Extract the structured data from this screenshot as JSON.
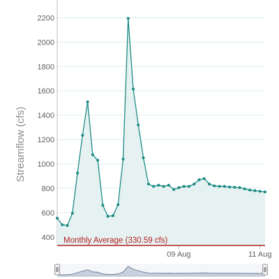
{
  "chart_data": {
    "type": "area",
    "title": "",
    "xlabel": "",
    "ylabel": "Streamflow (cfs)",
    "ylim": [
      330,
      2300
    ],
    "yticks": [
      400,
      600,
      800,
      1000,
      1200,
      1400,
      1600,
      1800,
      2000,
      2200
    ],
    "x_start": "2023-08-06",
    "x_step_hours": 3,
    "x_ticks": [
      {
        "label": "09 Aug",
        "index": 24
      },
      {
        "label": "11 Aug",
        "index": 40
      }
    ],
    "grid": true,
    "series": [
      {
        "name": "",
        "color": "#1b8a84",
        "fill": "#e6f2f1",
        "values": [
          555,
          500,
          495,
          595,
          925,
          1235,
          1510,
          1075,
          1030,
          660,
          570,
          575,
          665,
          1040,
          2195,
          1615,
          1320,
          1050,
          835,
          815,
          825,
          815,
          825,
          790,
          805,
          815,
          815,
          835,
          870,
          880,
          835,
          820,
          815,
          815,
          810,
          808,
          805,
          795,
          785,
          780,
          775,
          770
        ]
      }
    ],
    "reference_line": {
      "label": "Monthly Average (330.59 cfs)",
      "value": 330.59,
      "color": "#b22222"
    },
    "navigator": {
      "line_color": "#6e7f9a",
      "fill": "#c9d1df"
    }
  }
}
